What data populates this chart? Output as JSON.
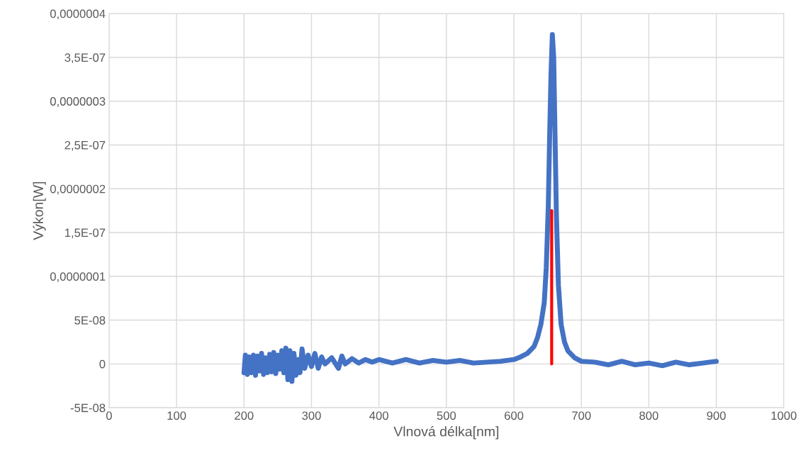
{
  "chart_data": {
    "type": "line",
    "xlabel": "Vlnová délka[nm]",
    "ylabel": "Výkon[W]",
    "xlim": [
      0,
      1000
    ],
    "xticks": [
      0,
      100,
      200,
      300,
      400,
      500,
      600,
      700,
      800,
      900,
      1000
    ],
    "ylim": [
      -5e-08,
      4e-07
    ],
    "yticks": [
      {
        "value": -5e-08,
        "label": "-5E-08"
      },
      {
        "value": 0,
        "label": "0"
      },
      {
        "value": 5e-08,
        "label": "5E-08"
      },
      {
        "value": 1e-07,
        "label": "0,0000001"
      },
      {
        "value": 1.5e-07,
        "label": "1,5E-07"
      },
      {
        "value": 2e-07,
        "label": "0,0000002"
      },
      {
        "value": 2.5e-07,
        "label": "2,5E-07"
      },
      {
        "value": 3e-07,
        "label": "0,0000003"
      },
      {
        "value": 3.5e-07,
        "label": "3,5E-07"
      },
      {
        "value": 4e-07,
        "label": "0,0000004"
      }
    ],
    "grid": true,
    "marker": "none",
    "line_style": "solid",
    "series": [
      {
        "color": "#4472c4",
        "x": [
          200,
          202,
          205,
          208,
          211,
          214,
          217,
          220,
          223,
          226,
          229,
          232,
          235,
          238,
          241,
          244,
          247,
          250,
          253,
          256,
          259,
          262,
          265,
          268,
          271,
          274,
          277,
          280,
          283,
          286,
          290,
          295,
          300,
          305,
          310,
          315,
          320,
          330,
          340,
          345,
          350,
          360,
          370,
          380,
          390,
          400,
          420,
          440,
          460,
          480,
          500,
          520,
          540,
          560,
          580,
          600,
          610,
          620,
          630,
          635,
          640,
          645,
          648,
          651,
          653,
          655,
          657,
          659,
          661,
          663,
          666,
          670,
          675,
          680,
          690,
          700,
          720,
          740,
          760,
          780,
          800,
          820,
          840,
          860,
          880,
          900
        ],
        "values": [
          -1e-08,
          1e-08,
          -1.2e-08,
          8e-09,
          -1e-08,
          1e-08,
          -1.3e-08,
          9e-09,
          -8e-09,
          1.2e-08,
          -1.2e-08,
          7e-09,
          -1e-08,
          1.1e-08,
          -9e-09,
          1.3e-08,
          -1.1e-08,
          1e-08,
          -6e-09,
          1.5e-08,
          -1e-08,
          1.8e-08,
          -1.8e-08,
          1.5e-08,
          -2e-08,
          1.2e-08,
          -1.3e-08,
          5e-09,
          -1e-08,
          1.7e-08,
          -5e-09,
          1e-08,
          -3e-09,
          1.2e-08,
          -5e-09,
          8e-09,
          0,
          7e-09,
          -5e-09,
          9e-09,
          0,
          6e-09,
          1e-09,
          5e-09,
          2e-09,
          5e-09,
          1e-09,
          5e-09,
          1e-09,
          4e-09,
          2e-09,
          4e-09,
          1e-09,
          2e-09,
          3e-09,
          5e-09,
          8e-09,
          1.2e-08,
          2e-08,
          3e-08,
          4.5e-08,
          7e-08,
          1.1e-07,
          1.8e-07,
          2.6e-07,
          3.3e-07,
          3.76e-07,
          3.5e-07,
          2.6e-07,
          1.7e-07,
          9e-08,
          4.5e-08,
          2.5e-08,
          1.5e-08,
          7e-09,
          3e-09,
          2e-09,
          -1e-09,
          3e-09,
          -1e-09,
          1e-09,
          -2e-09,
          2e-09,
          -1e-09,
          1e-09,
          3e-09
        ]
      },
      {
        "color": "#ff0000",
        "x": [
          656,
          656
        ],
        "values": [
          0,
          1.75e-07
        ]
      }
    ]
  }
}
